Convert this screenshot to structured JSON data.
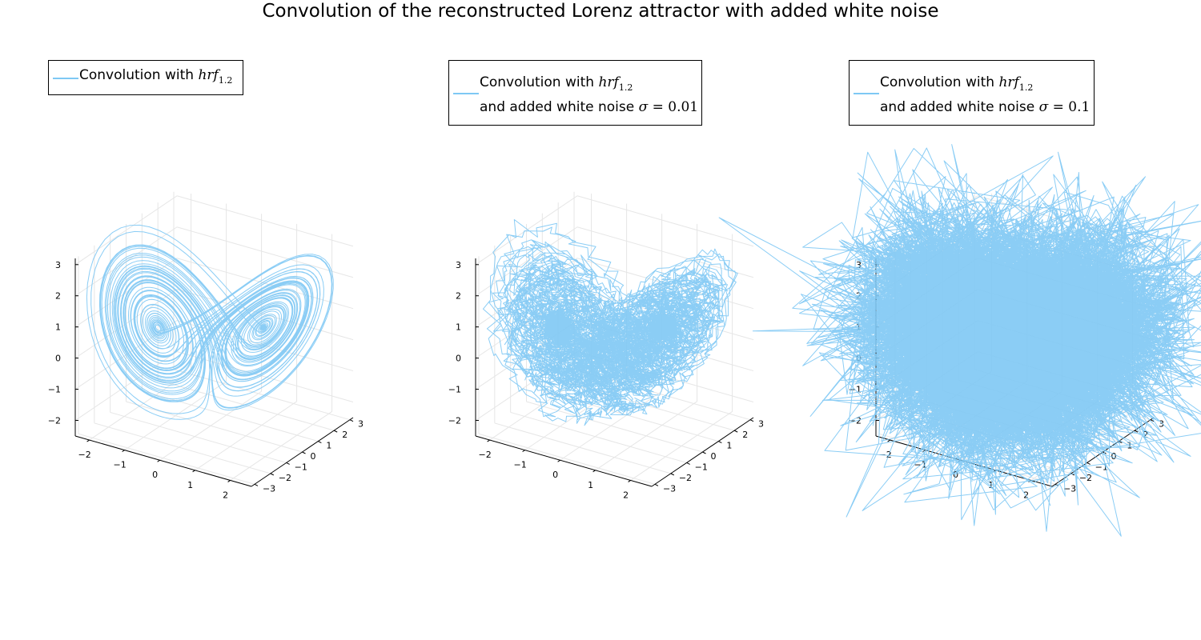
{
  "figure": {
    "title": "Convolution of the reconstructed Lorenz attractor with added white noise"
  },
  "chart_data": [
    {
      "type": "line3d",
      "legend": {
        "line1_prefix": "Convolution with ",
        "line1_math": "hrf",
        "line1_sub": "1.2",
        "line2_prefix": "",
        "line2_math": "",
        "line2_value": ""
      },
      "noise_sigma": 0,
      "x_ticks": [
        "−2",
        "−1",
        "0",
        "1",
        "2"
      ],
      "y_ticks": [
        "−3",
        "−2",
        "−1",
        "0",
        "1",
        "2",
        "3"
      ],
      "z_ticks": [
        "−2",
        "−1",
        "0",
        "1",
        "2",
        "3"
      ],
      "x_range": [
        -2.4,
        2.6
      ],
      "y_range": [
        -3.2,
        3.2
      ],
      "z_range": [
        -2.5,
        3.2
      ],
      "grid": true,
      "color": "#7ec8f4",
      "legend_position": "top-left"
    },
    {
      "type": "line3d",
      "legend": {
        "line1_prefix": "Convolution with ",
        "line1_math": "hrf",
        "line1_sub": "1.2",
        "line2_prefix": "and added white noise ",
        "line2_math": "σ",
        "line2_value": " = 0.01"
      },
      "noise_sigma": 0.01,
      "x_ticks": [
        "−2",
        "−1",
        "0",
        "1",
        "2"
      ],
      "y_ticks": [
        "−3",
        "−2",
        "−1",
        "0",
        "1",
        "2",
        "3"
      ],
      "z_ticks": [
        "−2",
        "−1",
        "0",
        "1",
        "2",
        "3"
      ],
      "x_range": [
        -2.4,
        2.6
      ],
      "y_range": [
        -3.2,
        3.2
      ],
      "z_range": [
        -2.5,
        3.2
      ],
      "grid": true,
      "color": "#7ec8f4",
      "legend_position": "top-left"
    },
    {
      "type": "line3d",
      "legend": {
        "line1_prefix": "Convolution with ",
        "line1_math": "hrf",
        "line1_sub": "1.2",
        "line2_prefix": "and added white noise ",
        "line2_math": "σ",
        "line2_value": " = 0.1"
      },
      "noise_sigma": 0.1,
      "x_ticks": [
        "−2",
        "−1",
        "0",
        "1",
        "2"
      ],
      "y_ticks": [
        "−3",
        "−2",
        "−1",
        "0",
        "1",
        "2",
        "3"
      ],
      "z_ticks": [
        "−2",
        "−1",
        "0",
        "1",
        "2",
        "3"
      ],
      "x_range": [
        -2.4,
        2.6
      ],
      "y_range": [
        -3.2,
        3.2
      ],
      "z_range": [
        -2.5,
        3.2
      ],
      "grid": true,
      "color": "#7ec8f4",
      "legend_position": "top-left"
    }
  ]
}
